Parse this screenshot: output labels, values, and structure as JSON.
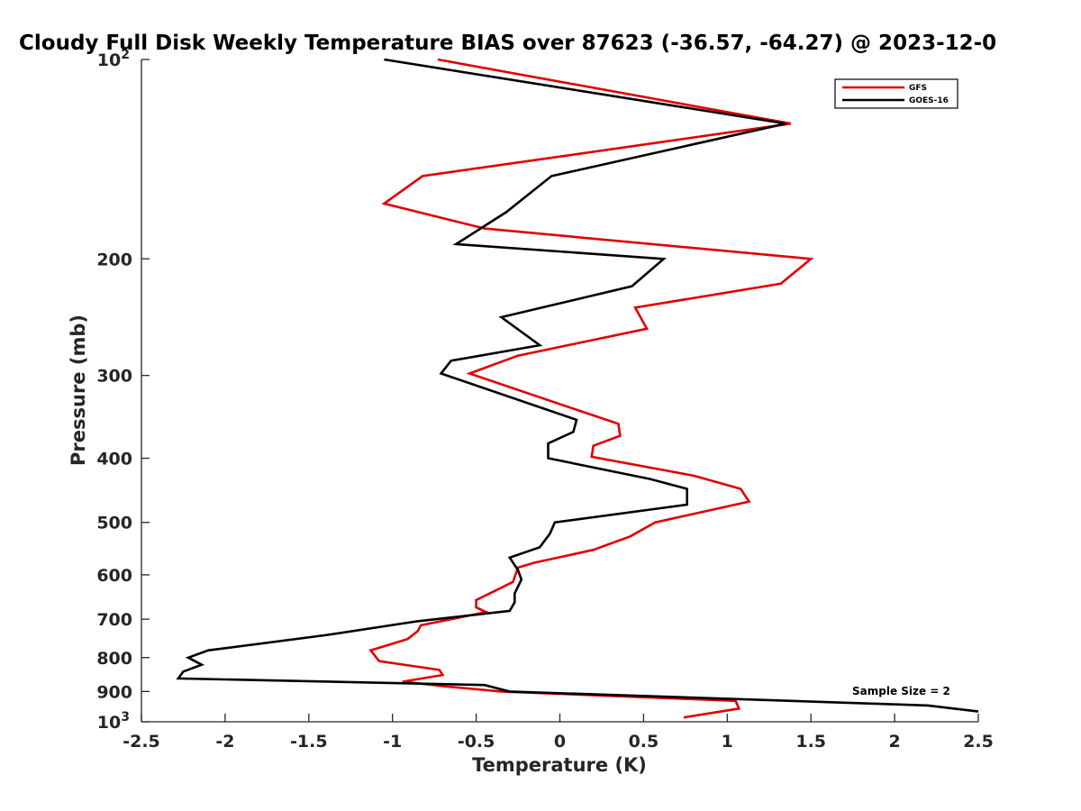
{
  "chart_data": {
    "type": "line",
    "title": "Cloudy Full Disk Weekly Temperature BIAS over 87623 (-36.57, -64.27) @ 2023-12-0",
    "xlabel": "Temperature (K)",
    "ylabel": "Pressure (mb)",
    "xlim": [
      -2.5,
      2.5
    ],
    "ylim": [
      100,
      1000
    ],
    "y_scale": "log",
    "y_direction": "reversed",
    "grid": false,
    "legend_position": "top-right",
    "x_ticks": [
      "-2.5",
      "-2",
      "-1.5",
      "-1",
      "-0.5",
      "0",
      "0.5",
      "1",
      "1.5",
      "2",
      "2.5"
    ],
    "y_ticks": [
      {
        "value": 100,
        "base": "10",
        "exp": "2"
      },
      {
        "value": 200,
        "label": "200"
      },
      {
        "value": 300,
        "label": "300"
      },
      {
        "value": 400,
        "label": "400"
      },
      {
        "value": 500,
        "label": "500"
      },
      {
        "value": 600,
        "label": "600"
      },
      {
        "value": 700,
        "label": "700"
      },
      {
        "value": 800,
        "label": "800"
      },
      {
        "value": 900,
        "label": "900"
      },
      {
        "value": 1000,
        "base": "10",
        "exp": "3"
      }
    ],
    "annotation": "Sample Size = 2",
    "series": [
      {
        "name": "GFS",
        "color": "#e00000",
        "points": [
          [
            -0.73,
            100
          ],
          [
            1.38,
            125
          ],
          [
            -0.82,
            150
          ],
          [
            -1.05,
            165
          ],
          [
            -0.45,
            180
          ],
          [
            1.5,
            200
          ],
          [
            1.32,
            218
          ],
          [
            0.45,
            237
          ],
          [
            0.52,
            255
          ],
          [
            -0.25,
            280
          ],
          [
            -0.54,
            298
          ],
          [
            0.35,
            355
          ],
          [
            0.36,
            370
          ],
          [
            0.2,
            383
          ],
          [
            0.19,
            398
          ],
          [
            0.8,
            425
          ],
          [
            1.08,
            445
          ],
          [
            1.13,
            465
          ],
          [
            0.57,
            500
          ],
          [
            0.42,
            525
          ],
          [
            0.2,
            550
          ],
          [
            -0.15,
            575
          ],
          [
            -0.25,
            585
          ],
          [
            -0.28,
            615
          ],
          [
            -0.5,
            655
          ],
          [
            -0.5,
            672
          ],
          [
            -0.44,
            683
          ],
          [
            -0.83,
            715
          ],
          [
            -0.85,
            730
          ],
          [
            -0.91,
            750
          ],
          [
            -1.13,
            780
          ],
          [
            -1.08,
            810
          ],
          [
            -0.72,
            835
          ],
          [
            -0.7,
            850
          ],
          [
            -0.94,
            870
          ],
          [
            -0.67,
            885
          ],
          [
            -0.35,
            900
          ],
          [
            1.05,
            930
          ],
          [
            1.07,
            955
          ],
          [
            0.74,
            985
          ]
        ]
      },
      {
        "name": "GOES-16",
        "color": "#000000",
        "points": [
          [
            -1.05,
            100
          ],
          [
            1.35,
            125
          ],
          [
            -0.05,
            150
          ],
          [
            -0.32,
            170
          ],
          [
            -0.62,
            190
          ],
          [
            0.62,
            200
          ],
          [
            0.43,
            220
          ],
          [
            -0.35,
            245
          ],
          [
            -0.12,
            270
          ],
          [
            -0.65,
            285
          ],
          [
            -0.71,
            298
          ],
          [
            0.1,
            350
          ],
          [
            0.08,
            365
          ],
          [
            -0.07,
            380
          ],
          [
            -0.07,
            400
          ],
          [
            0.54,
            430
          ],
          [
            0.76,
            445
          ],
          [
            0.76,
            470
          ],
          [
            -0.03,
            500
          ],
          [
            -0.06,
            520
          ],
          [
            -0.12,
            545
          ],
          [
            -0.3,
            565
          ],
          [
            -0.25,
            590
          ],
          [
            -0.23,
            610
          ],
          [
            -0.27,
            640
          ],
          [
            -0.27,
            660
          ],
          [
            -0.3,
            680
          ],
          [
            -0.85,
            705
          ],
          [
            -1.4,
            740
          ],
          [
            -2.1,
            780
          ],
          [
            -2.22,
            800
          ],
          [
            -2.14,
            820
          ],
          [
            -2.25,
            840
          ],
          [
            -2.28,
            860
          ],
          [
            -0.45,
            880
          ],
          [
            -0.3,
            900
          ],
          [
            2.2,
            945
          ],
          [
            2.5,
            965
          ]
        ]
      }
    ]
  }
}
